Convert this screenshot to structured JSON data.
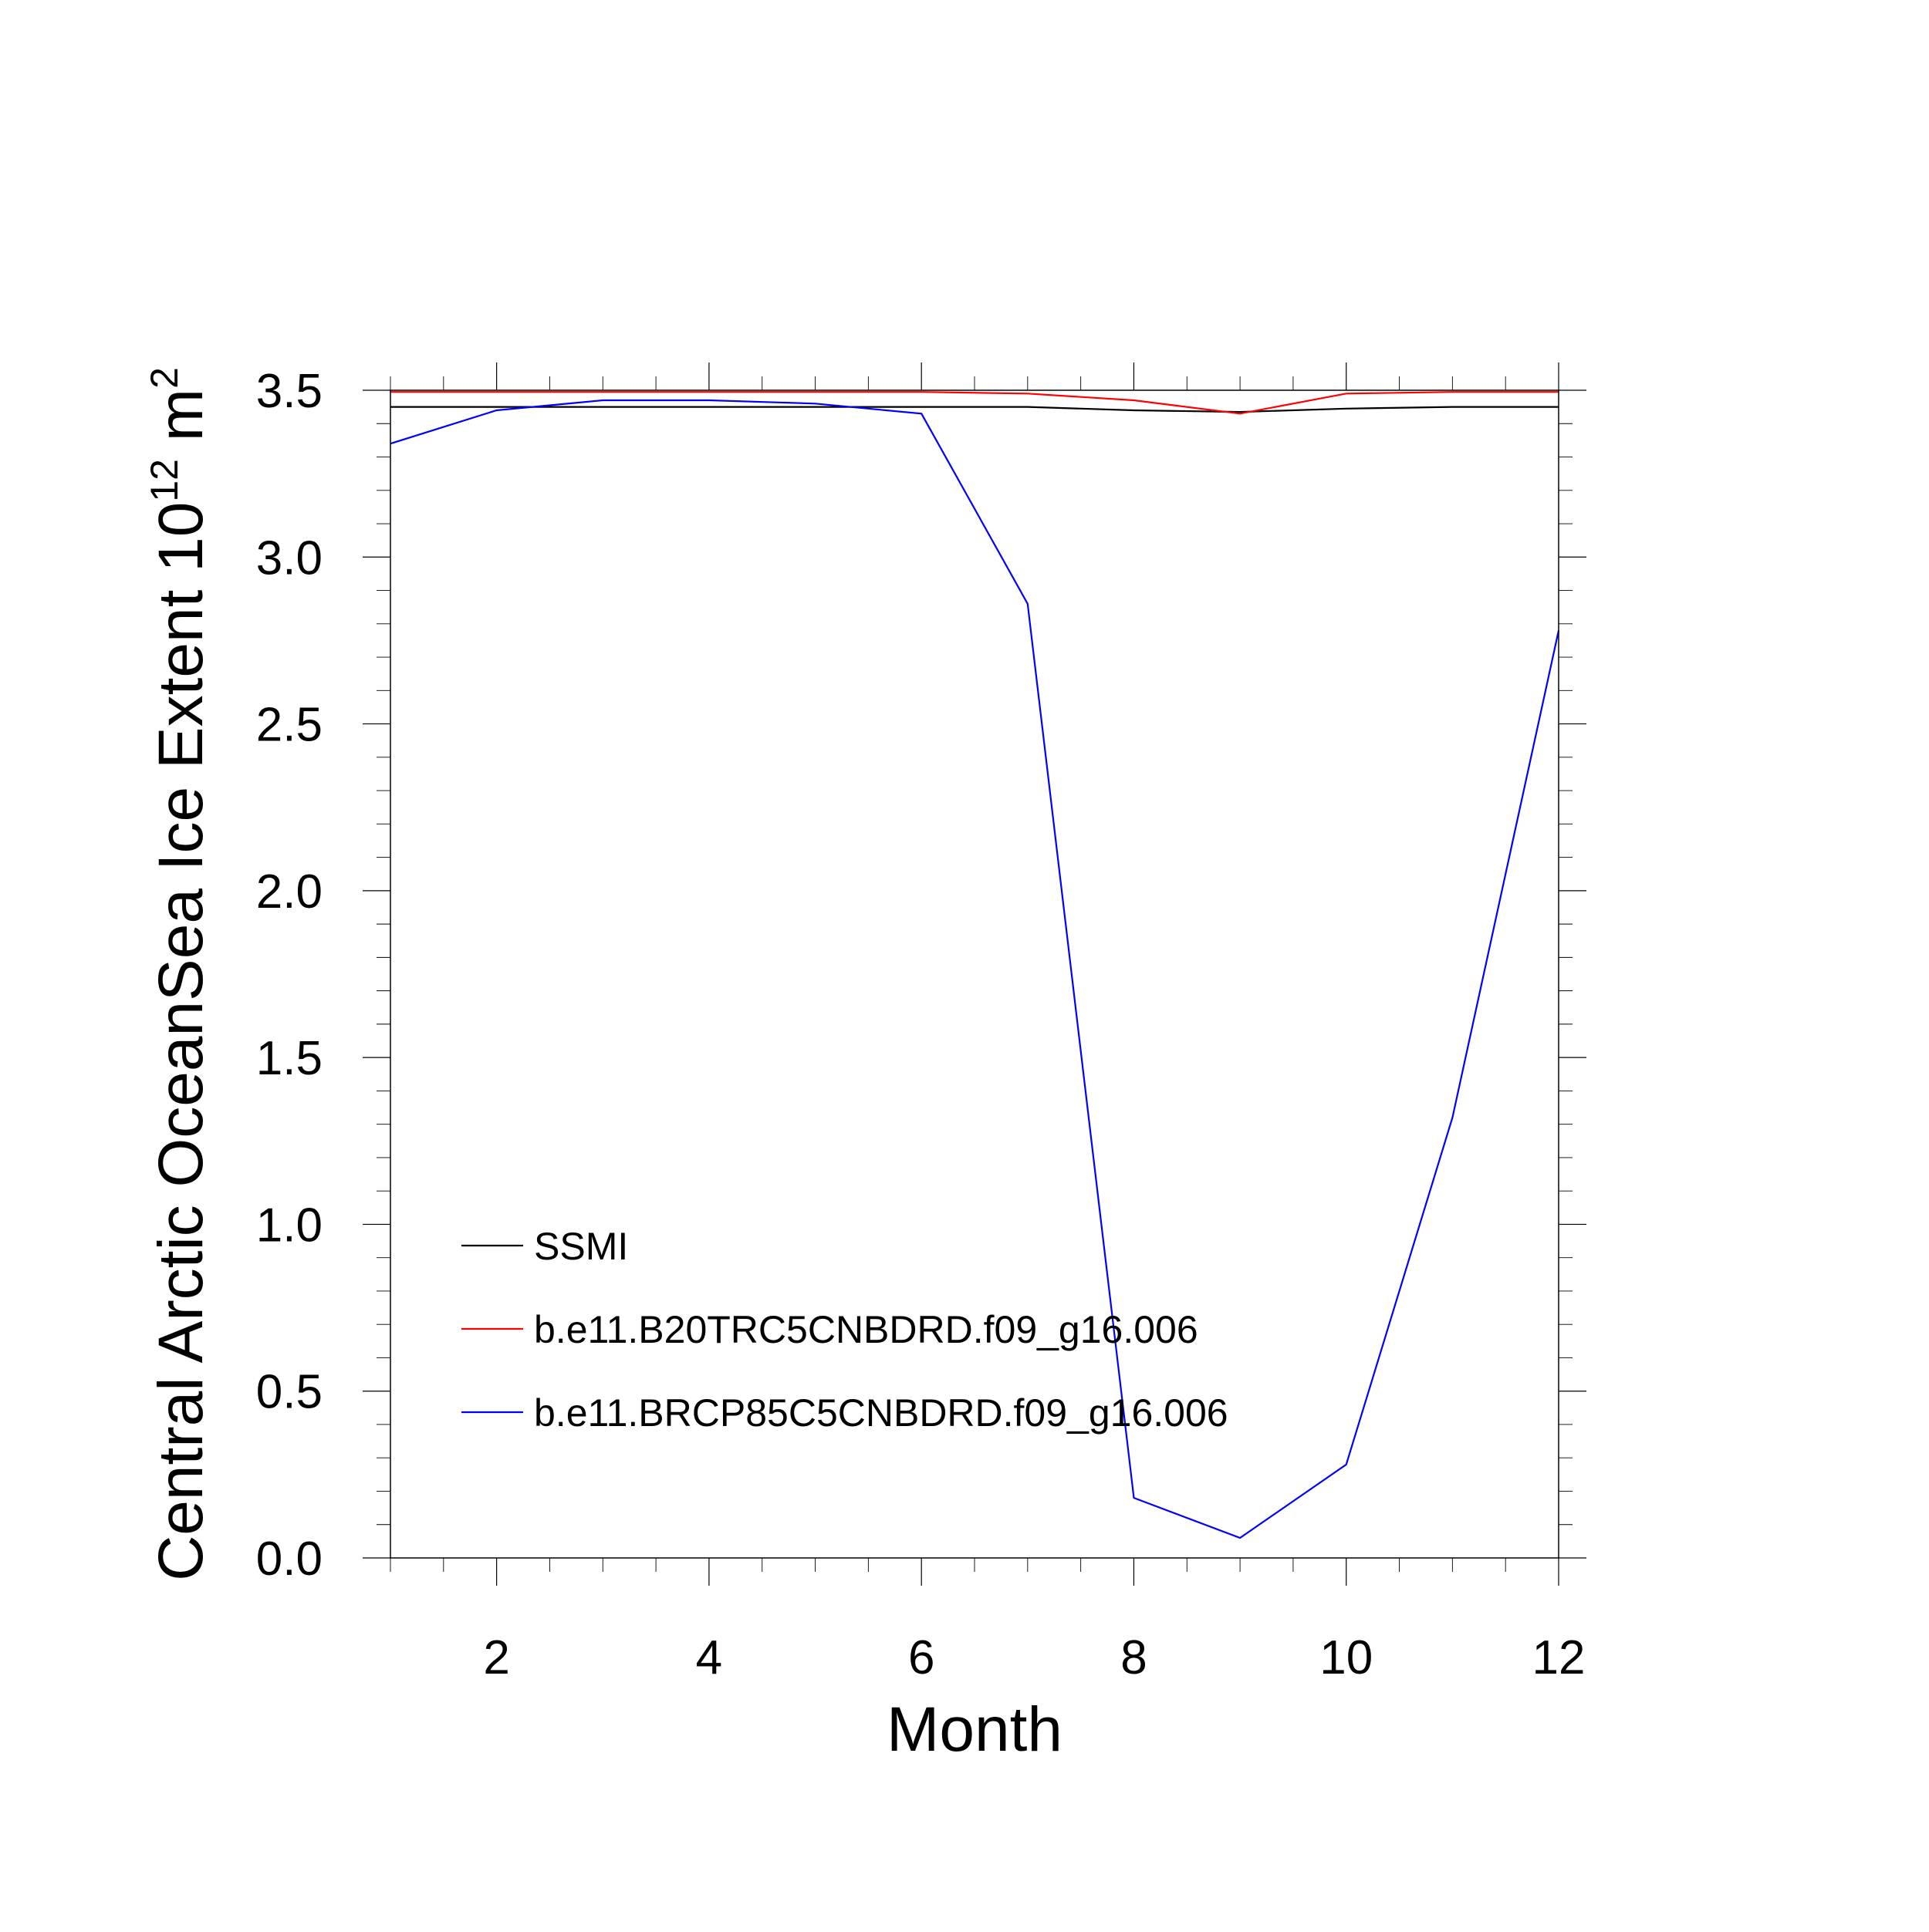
{
  "chart_data": {
    "type": "line",
    "title": "",
    "xlabel": "Month",
    "ylabel": {
      "text": "Central Arctic OceanSea Ice Extent 10",
      "exponent": "12",
      "unit": "m",
      "unit_exponent": "2"
    },
    "xlim": [
      1,
      12
    ],
    "ylim": [
      0,
      3.5
    ],
    "x_ticks": [
      2,
      4,
      6,
      8,
      10,
      12
    ],
    "x_tick_labels": [
      "2",
      "4",
      "6",
      "8",
      "10",
      "12"
    ],
    "y_ticks": [
      0,
      0.5,
      1,
      1.5,
      2,
      2.5,
      3,
      3.5
    ],
    "y_tick_labels": [
      "0.0",
      "0.5",
      "1.0",
      "1.5",
      "2.0",
      "2.5",
      "3.0",
      "3.5"
    ],
    "grid": false,
    "legend_position": "lower-left",
    "x": [
      1,
      2,
      3,
      4,
      5,
      6,
      7,
      8,
      9,
      10,
      11,
      12
    ],
    "series": [
      {
        "name": "SSMI",
        "color": "#000000",
        "values": [
          3.45,
          3.45,
          3.45,
          3.45,
          3.45,
          3.45,
          3.45,
          3.44,
          3.435,
          3.445,
          3.45,
          3.45
        ]
      },
      {
        "name": "b.e11.B20TRC5CNBDRD.f09_g16.006",
        "color": "#ff0000",
        "values": [
          3.495,
          3.495,
          3.495,
          3.495,
          3.495,
          3.495,
          3.49,
          3.47,
          3.43,
          3.49,
          3.495,
          3.495
        ]
      },
      {
        "name": "b.e11.BRCP85C5CNBDRD.f09_g16.006",
        "color": "#0000ff",
        "values": [
          3.34,
          3.44,
          3.47,
          3.47,
          3.46,
          3.43,
          2.86,
          0.18,
          0.06,
          0.28,
          1.32,
          2.78
        ]
      }
    ]
  }
}
